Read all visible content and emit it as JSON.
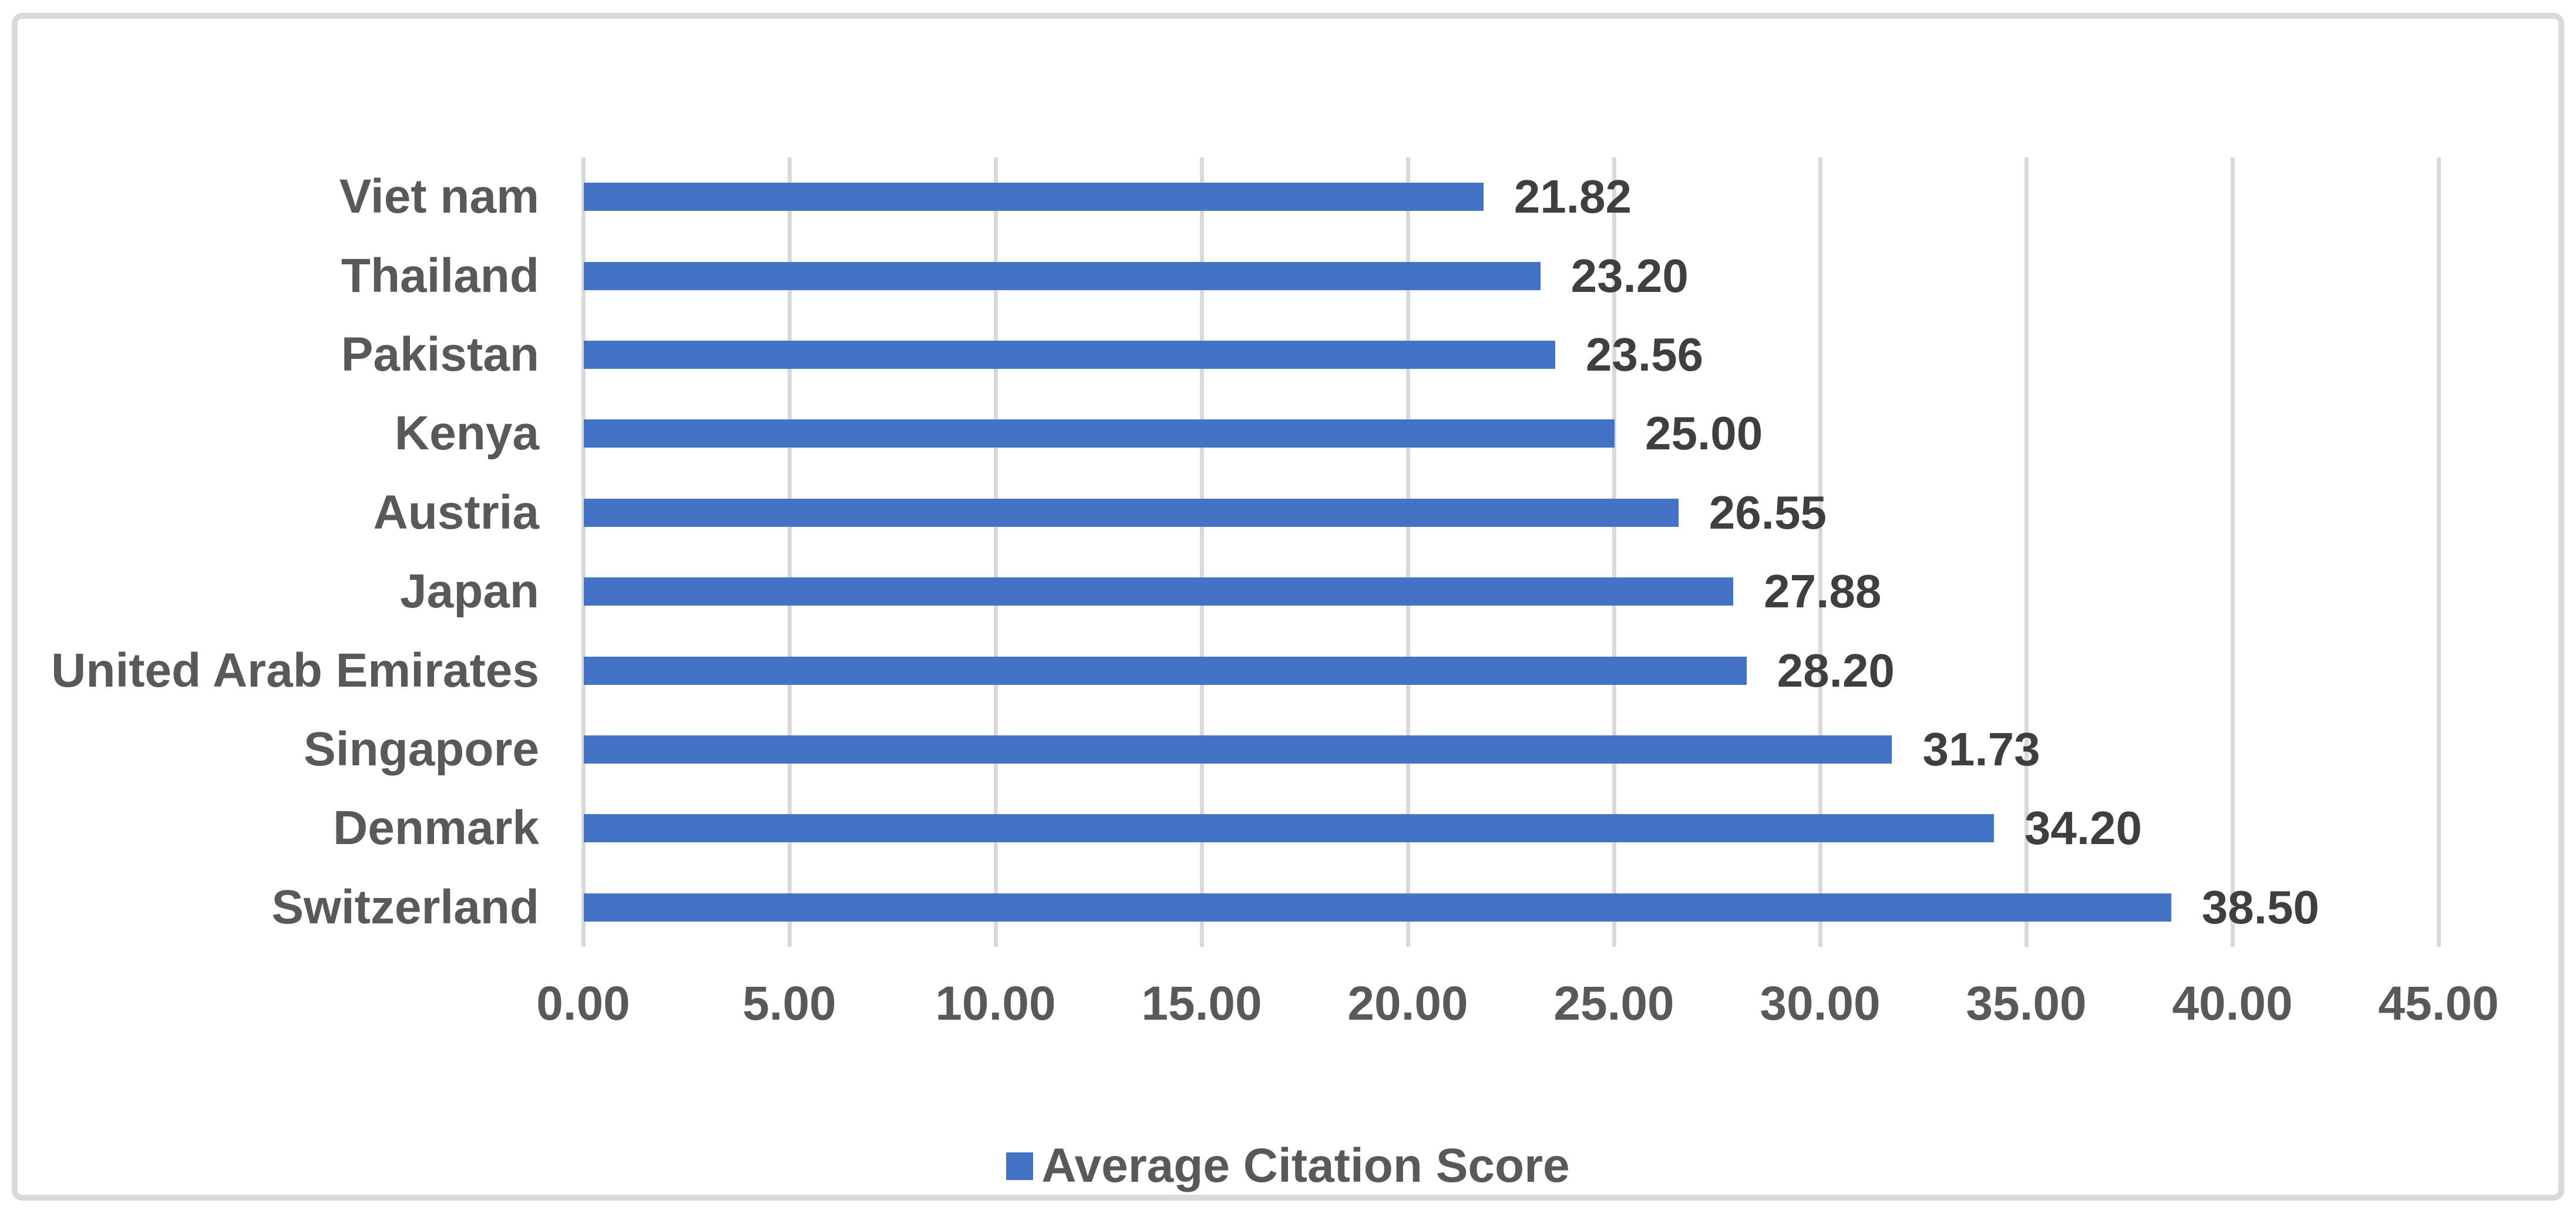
{
  "chart_data": {
    "type": "bar",
    "orientation": "horizontal",
    "title": "",
    "categories": [
      "Viet nam",
      "Thailand",
      "Pakistan",
      "Kenya",
      "Austria",
      "Japan",
      "United Arab Emirates",
      "Singapore",
      "Denmark",
      "Switzerland"
    ],
    "series": [
      {
        "name": "Average Citation Score",
        "values": [
          21.82,
          23.2,
          23.56,
          25.0,
          26.55,
          27.88,
          28.2,
          31.73,
          34.2,
          38.5
        ],
        "value_labels": [
          "21.82",
          "23.20",
          "23.56",
          "25.00",
          "26.55",
          "27.88",
          "28.20",
          "31.73",
          "34.20",
          "38.50"
        ]
      }
    ],
    "xlabel": "",
    "ylabel": "",
    "xlim": [
      0,
      45
    ],
    "x_tick_step": 5,
    "x_tick_labels": [
      "0.00",
      "5.00",
      "10.00",
      "15.00",
      "20.00",
      "25.00",
      "30.00",
      "35.00",
      "40.00",
      "45.00"
    ],
    "grid": true,
    "legend_position": "bottom",
    "colors": {
      "bar": "#4472C4",
      "label_text": "#3F3F3F",
      "axis_text": "#595959",
      "gridline": "#D9D9D9",
      "frame_border": "#D9D9D9",
      "background": "#FFFFFF"
    }
  },
  "legend": {
    "label": "Average Citation Score"
  }
}
